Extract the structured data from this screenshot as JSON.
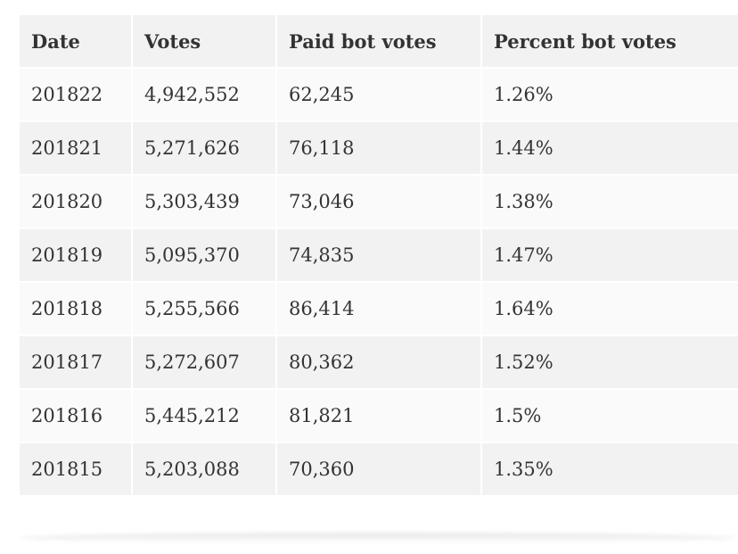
{
  "table": {
    "headers": [
      "Date",
      "Votes",
      "Paid bot votes",
      "Percent bot votes"
    ],
    "rows": [
      [
        "201822",
        "4,942,552",
        "62,245",
        "1.26%"
      ],
      [
        "201821",
        "5,271,626",
        "76,118",
        "1.44%"
      ],
      [
        "201820",
        "5,303,439",
        "73,046",
        "1.38%"
      ],
      [
        "201819",
        "5,095,370",
        "74,835",
        "1.47%"
      ],
      [
        "201818",
        "5,255,566",
        "86,414",
        "1.64%"
      ],
      [
        "201817",
        "5,272,607",
        "80,362",
        "1.52%"
      ],
      [
        "201816",
        "5,445,212",
        "81,821",
        "1.5%"
      ],
      [
        "201815",
        "5,203,088",
        "70,360",
        "1.35%"
      ]
    ]
  }
}
